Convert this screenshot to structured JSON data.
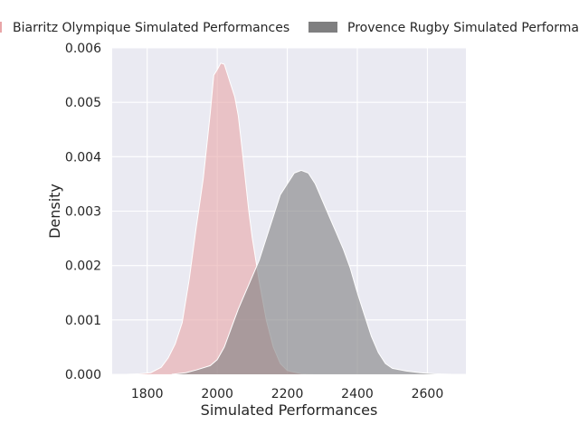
{
  "chart_data": {
    "type": "area",
    "title": "",
    "xlabel": "Simulated Performances",
    "ylabel": "Density",
    "xlim": [
      1700,
      2710
    ],
    "ylim": [
      0,
      0.006
    ],
    "xticks": [
      1800,
      2000,
      2200,
      2400,
      2600
    ],
    "xtick_labels": [
      "1800",
      "2000",
      "2200",
      "2400",
      "2600"
    ],
    "yticks": [
      0,
      0.001,
      0.002,
      0.003,
      0.004,
      0.005,
      0.006
    ],
    "ytick_labels": [
      "0.000",
      "0.001",
      "0.002",
      "0.003",
      "0.004",
      "0.005",
      "0.006"
    ],
    "grid": true,
    "legend_position": "top",
    "series": [
      {
        "name": "Biarritz Olympique Simulated Performances",
        "color": "#e8a6a8",
        "fill_color": "#e8a6a8",
        "points": [
          [
            1740,
            0.0
          ],
          [
            1780,
            1e-05
          ],
          [
            1810,
            3e-05
          ],
          [
            1840,
            0.00013
          ],
          [
            1860,
            0.0003
          ],
          [
            1880,
            0.00056
          ],
          [
            1900,
            0.00095
          ],
          [
            1920,
            0.00175
          ],
          [
            1940,
            0.0027
          ],
          [
            1960,
            0.0036
          ],
          [
            1980,
            0.0048
          ],
          [
            1990,
            0.0055
          ],
          [
            2000,
            0.0056
          ],
          [
            2010,
            0.00572
          ],
          [
            2020,
            0.0057
          ],
          [
            2030,
            0.0055
          ],
          [
            2040,
            0.0053
          ],
          [
            2050,
            0.0051
          ],
          [
            2060,
            0.00475
          ],
          [
            2070,
            0.0042
          ],
          [
            2080,
            0.0036
          ],
          [
            2090,
            0.003
          ],
          [
            2100,
            0.0025
          ],
          [
            2120,
            0.0017
          ],
          [
            2140,
            0.001
          ],
          [
            2160,
            0.0005
          ],
          [
            2180,
            0.0002
          ],
          [
            2200,
            7e-05
          ],
          [
            2240,
            1e-05
          ],
          [
            2280,
            0.0
          ]
        ]
      },
      {
        "name": "Provence Rugby Simulated Performances",
        "color": "#7f7f80",
        "fill_color": "#7f7f80",
        "points": [
          [
            1870,
            0.0
          ],
          [
            1910,
            3e-05
          ],
          [
            1940,
            8e-05
          ],
          [
            1980,
            0.00016
          ],
          [
            2000,
            0.00027
          ],
          [
            2020,
            0.0005
          ],
          [
            2040,
            0.00085
          ],
          [
            2060,
            0.0012
          ],
          [
            2080,
            0.0015
          ],
          [
            2100,
            0.0018
          ],
          [
            2120,
            0.0021
          ],
          [
            2140,
            0.0025
          ],
          [
            2160,
            0.0029
          ],
          [
            2180,
            0.0033
          ],
          [
            2200,
            0.0035
          ],
          [
            2220,
            0.0037
          ],
          [
            2240,
            0.00375
          ],
          [
            2260,
            0.0037
          ],
          [
            2280,
            0.0035
          ],
          [
            2300,
            0.0032
          ],
          [
            2320,
            0.0029
          ],
          [
            2340,
            0.0026
          ],
          [
            2360,
            0.0023
          ],
          [
            2380,
            0.00195
          ],
          [
            2400,
            0.0015
          ],
          [
            2420,
            0.0011
          ],
          [
            2440,
            0.0007
          ],
          [
            2460,
            0.0004
          ],
          [
            2480,
            0.0002
          ],
          [
            2500,
            0.00011
          ],
          [
            2540,
            6e-05
          ],
          [
            2580,
            3e-05
          ],
          [
            2620,
            1e-05
          ],
          [
            2670,
            0.0
          ]
        ]
      }
    ]
  },
  "colors": {
    "plot_background": "#eaeaf2",
    "grid": "#ffffff",
    "text": "#262626"
  }
}
